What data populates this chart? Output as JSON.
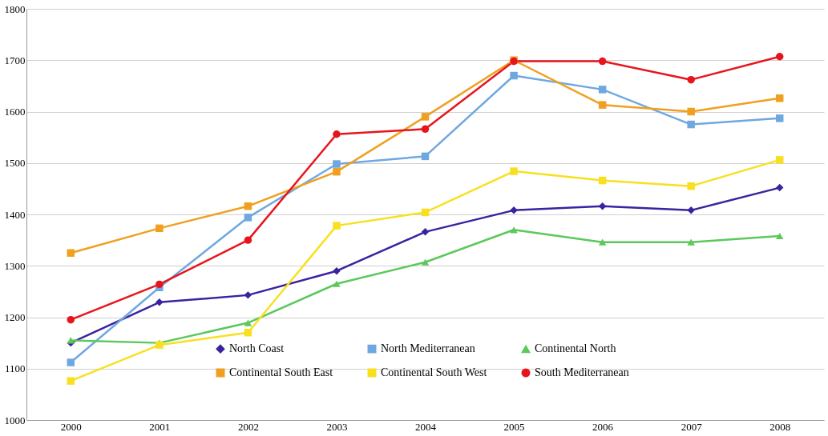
{
  "chart_data": {
    "type": "line",
    "categories": [
      "2000",
      "2001",
      "2002",
      "2003",
      "2004",
      "2005",
      "2006",
      "2007",
      "2008"
    ],
    "series": [
      {
        "name": "North Coast",
        "color": "#3b22a0",
        "marker": "diamond",
        "values": [
          1150,
          1229,
          1243,
          1290,
          1366,
          1408,
          1416,
          1408,
          1452
        ]
      },
      {
        "name": "North Mediterranean",
        "color": "#6fa8e0",
        "marker": "square",
        "values": [
          1112,
          1258,
          1394,
          1498,
          1513,
          1670,
          1643,
          1575,
          1587
        ]
      },
      {
        "name": "Continental North",
        "color": "#5cc85c",
        "marker": "triangle",
        "values": [
          1155,
          1150,
          1189,
          1265,
          1307,
          1370,
          1346,
          1346,
          1358
        ]
      },
      {
        "name": "Continental South East",
        "color": "#f0a020",
        "marker": "square",
        "values": [
          1325,
          1373,
          1416,
          1483,
          1590,
          1700,
          1613,
          1600,
          1626
        ]
      },
      {
        "name": "Continental South West",
        "color": "#f8e020",
        "marker": "square",
        "values": [
          1076,
          1146,
          1170,
          1378,
          1404,
          1484,
          1466,
          1455,
          1506
        ]
      },
      {
        "name": "South Mediterranean",
        "color": "#e8141c",
        "marker": "circle",
        "values": [
          1195,
          1264,
          1350,
          1556,
          1566,
          1698,
          1698,
          1662,
          1707
        ]
      }
    ],
    "ylim": [
      1000,
      1800
    ],
    "yticks": [
      1000,
      1100,
      1200,
      1300,
      1400,
      1500,
      1600,
      1700,
      1800
    ],
    "grid": "y",
    "legend": "bottom",
    "line_style": "solid"
  }
}
